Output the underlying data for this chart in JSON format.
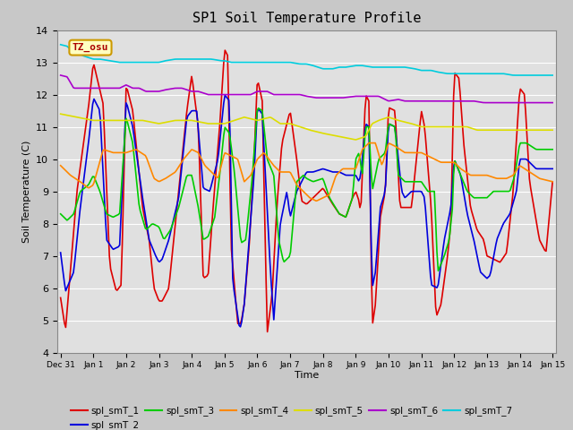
{
  "title": "SP1 Soil Temperature Profile",
  "xlabel": "Time",
  "ylabel": "Soil Temperature (C)",
  "ylim": [
    4.0,
    14.0
  ],
  "yticks": [
    4.0,
    5.0,
    6.0,
    7.0,
    8.0,
    9.0,
    10.0,
    11.0,
    12.0,
    13.0,
    14.0
  ],
  "bg_color": "#e0e0e0",
  "grid_color": "#ffffff",
  "tz_label": "TZ_osu",
  "series_colors": {
    "spl_smT_1": "#dd0000",
    "spl_smT_2": "#0000dd",
    "spl_smT_3": "#00cc00",
    "spl_smT_4": "#ff8800",
    "spl_smT_5": "#dddd00",
    "spl_smT_6": "#aa00cc",
    "spl_smT_7": "#00ccdd"
  },
  "legend_labels": [
    "spl_smT_1",
    "spl_smT_2",
    "spl_smT_3",
    "spl_smT_4",
    "spl_smT_5",
    "spl_smT_6",
    "spl_smT_7"
  ],
  "tick_labels": [
    "Dec 31",
    "Jan 1",
    "Jan 2",
    "Jan 3",
    "Jan 4",
    "Jan 5",
    "Jan 6",
    "Jan 7",
    "Jan 8",
    "Jan 9",
    "Jan 10",
    "Jan 11",
    "Jan 12",
    "Jan 13",
    "Jan 14",
    "Jan 15"
  ],
  "figsize": [
    6.4,
    4.8
  ],
  "dpi": 100
}
